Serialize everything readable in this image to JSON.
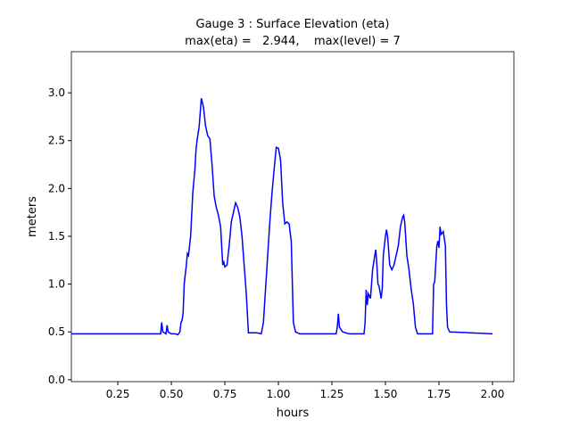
{
  "chart_data": {
    "type": "line",
    "title": "Gauge 3 : Surface Elevation (eta)",
    "subtitle": "max(eta) =   2.944,    max(level) = 7",
    "xlabel": "hours",
    "ylabel": "meters",
    "xlim": [
      0.033,
      2.1
    ],
    "ylim": [
      -0.02,
      3.43
    ],
    "xticks": [
      0.25,
      {
        "value": 0.5,
        "label": "0.50"
      },
      0.75,
      {
        "value": 1,
        "label": "1.00"
      },
      1.25,
      {
        "value": 1.5,
        "label": "1.50"
      },
      1.75,
      {
        "value": 2,
        "label": "2.00"
      }
    ],
    "yticks": [
      {
        "value": 0,
        "label": "0.0"
      },
      0.5,
      {
        "value": 1,
        "label": "1.0"
      },
      1.5,
      {
        "value": 2,
        "label": "2.0"
      },
      2.5,
      {
        "value": 3,
        "label": "3.0"
      }
    ],
    "grid": false,
    "series": [
      {
        "name": "eta",
        "color": "#0000ff",
        "x": [
          0.033,
          0.45,
          0.455,
          0.46,
          0.475,
          0.48,
          0.485,
          0.5,
          0.52,
          0.53,
          0.54,
          0.545,
          0.55,
          0.555,
          0.56,
          0.57,
          0.575,
          0.58,
          0.59,
          0.6,
          0.61,
          0.615,
          0.62,
          0.63,
          0.64,
          0.65,
          0.66,
          0.67,
          0.68,
          0.69,
          0.7,
          0.71,
          0.72,
          0.73,
          0.74,
          0.745,
          0.75,
          0.76,
          0.77,
          0.78,
          0.79,
          0.8,
          0.81,
          0.82,
          0.83,
          0.84,
          0.85,
          0.86,
          0.9,
          0.92,
          0.93,
          0.95,
          0.96,
          0.97,
          0.98,
          0.99,
          1.0,
          1.01,
          1.02,
          1.03,
          1.04,
          1.05,
          1.06,
          1.07,
          1.08,
          1.1,
          1.27,
          1.275,
          1.28,
          1.285,
          1.3,
          1.33,
          1.4,
          1.405,
          1.41,
          1.415,
          1.42,
          1.43,
          1.44,
          1.45,
          1.455,
          1.46,
          1.465,
          1.47,
          1.48,
          1.485,
          1.49,
          1.5,
          1.505,
          1.51,
          1.52,
          1.53,
          1.54,
          1.55,
          1.56,
          1.57,
          1.58,
          1.585,
          1.59,
          1.6,
          1.61,
          1.62,
          1.63,
          1.64,
          1.65,
          1.72,
          1.725,
          1.73,
          1.74,
          1.745,
          1.75,
          1.755,
          1.76,
          1.77,
          1.78,
          1.785,
          1.79,
          1.8,
          2.0
        ],
        "values": [
          0.48,
          0.48,
          0.6,
          0.5,
          0.48,
          0.57,
          0.5,
          0.48,
          0.48,
          0.47,
          0.5,
          0.6,
          0.62,
          0.7,
          1.0,
          1.2,
          1.32,
          1.3,
          1.5,
          1.95,
          2.2,
          2.4,
          2.5,
          2.65,
          2.944,
          2.85,
          2.65,
          2.55,
          2.52,
          2.25,
          1.92,
          1.8,
          1.72,
          1.6,
          1.2,
          1.23,
          1.18,
          1.2,
          1.4,
          1.65,
          1.75,
          1.85,
          1.8,
          1.7,
          1.5,
          1.2,
          0.9,
          0.49,
          0.49,
          0.48,
          0.6,
          1.3,
          1.65,
          1.95,
          2.2,
          2.43,
          2.42,
          2.3,
          1.85,
          1.63,
          1.65,
          1.63,
          1.45,
          0.6,
          0.5,
          0.48,
          0.48,
          0.55,
          0.69,
          0.55,
          0.5,
          0.48,
          0.48,
          0.6,
          0.94,
          0.78,
          0.9,
          0.85,
          1.15,
          1.3,
          1.36,
          1.2,
          1.0,
          0.98,
          0.85,
          0.95,
          1.3,
          1.5,
          1.57,
          1.5,
          1.2,
          1.15,
          1.2,
          1.3,
          1.4,
          1.6,
          1.7,
          1.72,
          1.65,
          1.3,
          1.15,
          0.95,
          0.8,
          0.55,
          0.48,
          0.48,
          1.0,
          1.02,
          1.4,
          1.45,
          1.38,
          1.6,
          1.52,
          1.55,
          1.4,
          0.8,
          0.55,
          0.5,
          0.48
        ]
      }
    ]
  }
}
